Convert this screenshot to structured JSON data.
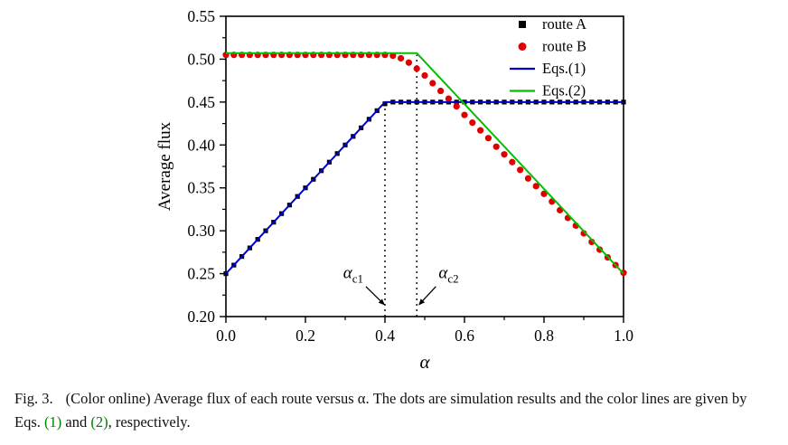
{
  "colors": {
    "background": "#ffffff",
    "axis": "#000000",
    "route_a": "#000000",
    "route_b": "#e00000",
    "eqs1_line": "#0000cd",
    "eqs2_line": "#00c000",
    "reference_link": "#008000"
  },
  "chart_data": {
    "type": "scatter",
    "title": "",
    "xlabel": "α",
    "ylabel": "Average flux",
    "xlim": [
      0.0,
      1.0
    ],
    "ylim": [
      0.2,
      0.55
    ],
    "x_ticks": [
      "0.0",
      "0.2",
      "0.4",
      "0.6",
      "0.8",
      "1.0"
    ],
    "x_tick_values": [
      0.0,
      0.2,
      0.4,
      0.6,
      0.8,
      1.0
    ],
    "y_ticks": [
      "0.20",
      "0.25",
      "0.30",
      "0.35",
      "0.40",
      "0.45",
      "0.50",
      "0.55"
    ],
    "y_tick_values": [
      0.2,
      0.25,
      0.3,
      0.35,
      0.4,
      0.45,
      0.5,
      0.55
    ],
    "x_minor_step": 0.1,
    "y_minor_step": 0.025,
    "grid": false,
    "legend_position": "top-right",
    "series": [
      {
        "name": "route A",
        "type": "scatter",
        "marker": "square",
        "color": "#000000",
        "points": [
          [
            0.0,
            0.25
          ],
          [
            0.02,
            0.26
          ],
          [
            0.04,
            0.27
          ],
          [
            0.06,
            0.28
          ],
          [
            0.08,
            0.29
          ],
          [
            0.1,
            0.3
          ],
          [
            0.12,
            0.31
          ],
          [
            0.14,
            0.32
          ],
          [
            0.16,
            0.33
          ],
          [
            0.18,
            0.34
          ],
          [
            0.2,
            0.35
          ],
          [
            0.22,
            0.36
          ],
          [
            0.24,
            0.37
          ],
          [
            0.26,
            0.38
          ],
          [
            0.28,
            0.39
          ],
          [
            0.3,
            0.4
          ],
          [
            0.32,
            0.41
          ],
          [
            0.34,
            0.42
          ],
          [
            0.36,
            0.43
          ],
          [
            0.38,
            0.44
          ],
          [
            0.4,
            0.448
          ],
          [
            0.42,
            0.45
          ],
          [
            0.44,
            0.45
          ],
          [
            0.46,
            0.45
          ],
          [
            0.48,
            0.45
          ],
          [
            0.5,
            0.45
          ],
          [
            0.52,
            0.45
          ],
          [
            0.54,
            0.45
          ],
          [
            0.56,
            0.45
          ],
          [
            0.58,
            0.45
          ],
          [
            0.6,
            0.45
          ],
          [
            0.62,
            0.45
          ],
          [
            0.64,
            0.45
          ],
          [
            0.66,
            0.45
          ],
          [
            0.68,
            0.45
          ],
          [
            0.7,
            0.45
          ],
          [
            0.72,
            0.45
          ],
          [
            0.74,
            0.45
          ],
          [
            0.76,
            0.45
          ],
          [
            0.78,
            0.45
          ],
          [
            0.8,
            0.45
          ],
          [
            0.82,
            0.45
          ],
          [
            0.84,
            0.45
          ],
          [
            0.86,
            0.45
          ],
          [
            0.88,
            0.45
          ],
          [
            0.9,
            0.45
          ],
          [
            0.92,
            0.45
          ],
          [
            0.94,
            0.45
          ],
          [
            0.96,
            0.45
          ],
          [
            0.98,
            0.45
          ],
          [
            1.0,
            0.45
          ]
        ]
      },
      {
        "name": "route B",
        "type": "scatter",
        "marker": "circle",
        "color": "#e00000",
        "points": [
          [
            0.0,
            0.505
          ],
          [
            0.02,
            0.505
          ],
          [
            0.04,
            0.505
          ],
          [
            0.06,
            0.505
          ],
          [
            0.08,
            0.505
          ],
          [
            0.1,
            0.505
          ],
          [
            0.12,
            0.505
          ],
          [
            0.14,
            0.505
          ],
          [
            0.16,
            0.505
          ],
          [
            0.18,
            0.505
          ],
          [
            0.2,
            0.505
          ],
          [
            0.22,
            0.505
          ],
          [
            0.24,
            0.505
          ],
          [
            0.26,
            0.505
          ],
          [
            0.28,
            0.505
          ],
          [
            0.3,
            0.505
          ],
          [
            0.32,
            0.505
          ],
          [
            0.34,
            0.505
          ],
          [
            0.36,
            0.505
          ],
          [
            0.38,
            0.505
          ],
          [
            0.4,
            0.505
          ],
          [
            0.42,
            0.504
          ],
          [
            0.44,
            0.501
          ],
          [
            0.46,
            0.496
          ],
          [
            0.48,
            0.489
          ],
          [
            0.5,
            0.481
          ],
          [
            0.52,
            0.472
          ],
          [
            0.54,
            0.463
          ],
          [
            0.56,
            0.454
          ],
          [
            0.58,
            0.445
          ],
          [
            0.6,
            0.435
          ],
          [
            0.62,
            0.426
          ],
          [
            0.64,
            0.417
          ],
          [
            0.66,
            0.408
          ],
          [
            0.68,
            0.398
          ],
          [
            0.7,
            0.389
          ],
          [
            0.72,
            0.38
          ],
          [
            0.74,
            0.371
          ],
          [
            0.76,
            0.361
          ],
          [
            0.78,
            0.352
          ],
          [
            0.8,
            0.343
          ],
          [
            0.82,
            0.334
          ],
          [
            0.84,
            0.324
          ],
          [
            0.86,
            0.315
          ],
          [
            0.88,
            0.306
          ],
          [
            0.9,
            0.297
          ],
          [
            0.92,
            0.287
          ],
          [
            0.94,
            0.278
          ],
          [
            0.96,
            0.269
          ],
          [
            0.98,
            0.26
          ],
          [
            1.0,
            0.251
          ]
        ]
      },
      {
        "name": "Eqs.(1)",
        "type": "line",
        "color": "#0000cd",
        "points": [
          [
            0.0,
            0.25
          ],
          [
            0.4,
            0.45
          ],
          [
            1.0,
            0.45
          ]
        ]
      },
      {
        "name": "Eqs.(2)",
        "type": "line",
        "color": "#00c000",
        "points": [
          [
            0.0,
            0.507
          ],
          [
            0.48,
            0.507
          ],
          [
            1.0,
            0.25
          ]
        ]
      }
    ],
    "reference_lines": [
      {
        "x": 0.4,
        "y_bottom": 0.2,
        "y_top": 0.452,
        "style": "dotted"
      },
      {
        "x": 0.48,
        "y_bottom": 0.2,
        "y_top": 0.505,
        "style": "dotted"
      }
    ],
    "annotations": [
      {
        "text": "α",
        "sub": "c1",
        "x": 0.295,
        "y": 0.245,
        "arrow": {
          "x1": 0.352,
          "y1": 0.235,
          "x2": 0.398,
          "y2": 0.214
        }
      },
      {
        "text": "α",
        "sub": "c2",
        "x": 0.535,
        "y": 0.245,
        "arrow": {
          "x1": 0.528,
          "y1": 0.235,
          "x2": 0.486,
          "y2": 0.214
        }
      }
    ]
  },
  "caption": {
    "label": "Fig. 3.",
    "body_before_refs": "(Color online) Average flux of each route versus α. The dots are simulation results and the color lines are given by Eqs. ",
    "ref1": "(1)",
    "between_refs": " and ",
    "ref2": "(2)",
    "after_refs": ", respectively."
  }
}
